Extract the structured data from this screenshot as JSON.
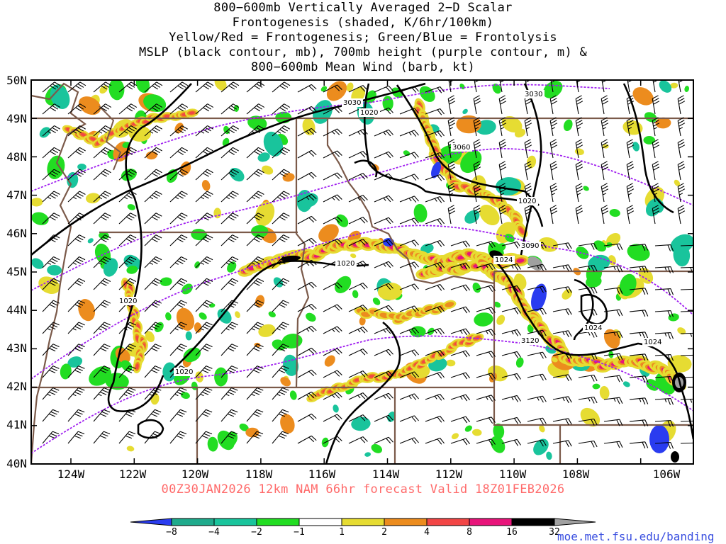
{
  "title_lines": [
    "800−600mb Vertically Averaged 2−D Scalar",
    "Frontogenesis (shaded, K/6hr/100km)",
    "Yellow/Red = Frontogenesis;  Green/Blue = Frontolysis",
    "MSLP (black contour, mb), 700mb height (purple contour, m) &",
    "800−600mb Mean Wind (barb, kt)"
  ],
  "lat_labels": [
    "50N",
    "49N",
    "48N",
    "47N",
    "46N",
    "45N",
    "44N",
    "43N",
    "42N",
    "41N",
    "40N"
  ],
  "lon_labels": [
    "124W",
    "122W",
    "120W",
    "118W",
    "116W",
    "114W",
    "112W",
    "110W",
    "108W",
    "106W"
  ],
  "subtitle": "00Z30JAN2026 12km NAM 66hr forecast Valid 18Z01FEB2026",
  "colorbar": {
    "labels": [
      "−8",
      "−4",
      "−2",
      "−1",
      "1",
      "2",
      "4",
      "8",
      "16",
      "32"
    ],
    "colors": [
      "#2a3cf0",
      "#1faa8c",
      "#19c49c",
      "#22dd22",
      "#ffffff",
      "#e6dc32",
      "#ec8c1e",
      "#f24646",
      "#e8147a",
      "#000000",
      "#a0a0a0"
    ]
  },
  "contour_labels": {
    "mslp": [
      "1020",
      "1020",
      "1020",
      "1020",
      "1020",
      "1024",
      "1024",
      "1024"
    ],
    "height": [
      "3030",
      "3030",
      "3060",
      "3090",
      "3120"
    ]
  },
  "footer": "moe.met.fsu.edu/banding"
}
